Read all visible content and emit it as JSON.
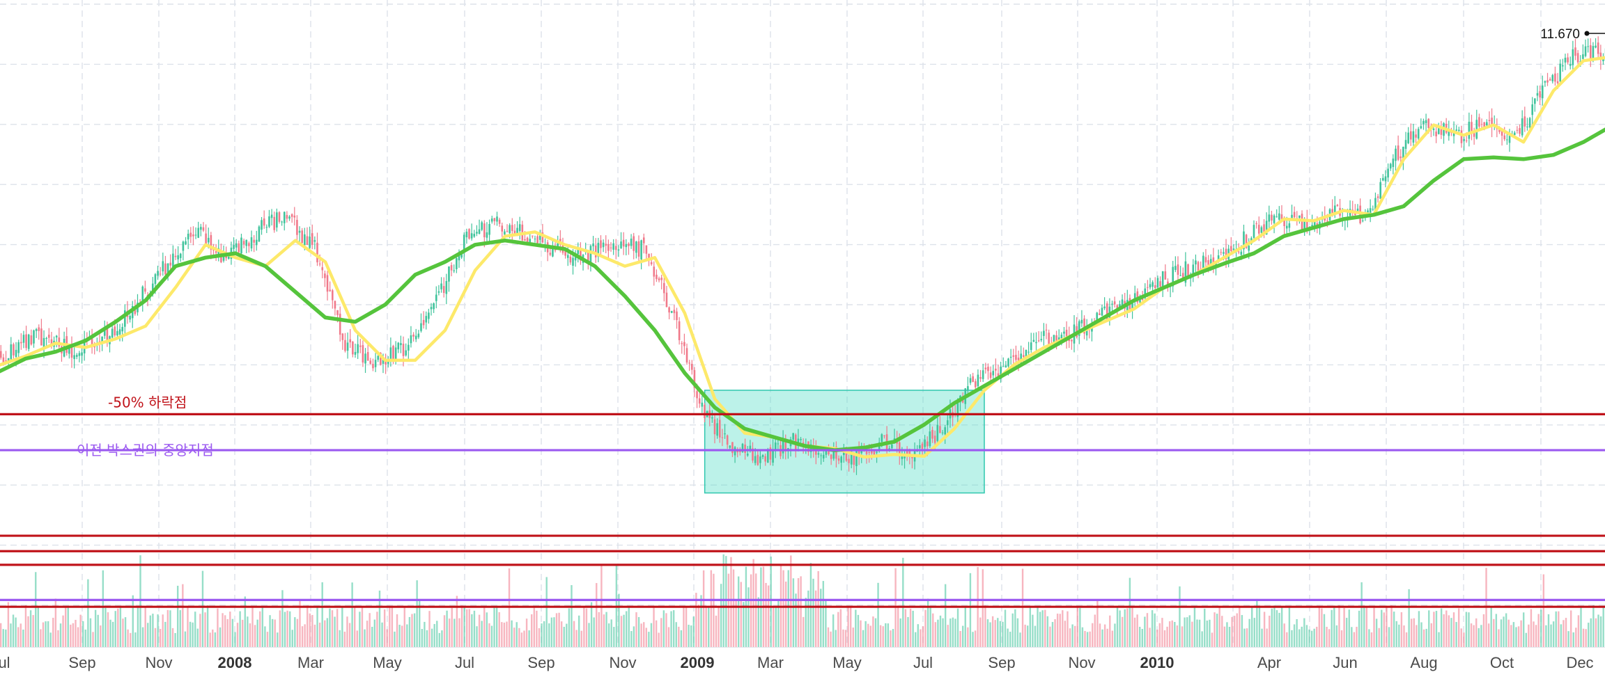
{
  "chart_data": {
    "type": "candlestick",
    "x_axis": {
      "labels": [
        "ul",
        "Sep",
        "Nov",
        "2008",
        "Mar",
        "May",
        "Jul",
        "Sep",
        "Nov",
        "2009",
        "Mar",
        "May",
        "Jul",
        "Sep",
        "Nov",
        "2010",
        "Apr",
        "Jun",
        "Aug",
        "Oct",
        "Dec"
      ],
      "year_labels": [
        "2008",
        "2009",
        "2010"
      ]
    },
    "last_price_label": "11.670",
    "grid": true,
    "series": [
      {
        "name": "",
        "style": "moving-average-short",
        "color": "#fde96a",
        "values": [
          [
            0,
            7.78
          ],
          [
            6,
            7.9
          ],
          [
            12,
            8.05
          ],
          [
            18,
            8.0
          ],
          [
            24,
            8.1
          ],
          [
            30,
            8.25
          ],
          [
            36,
            8.7
          ],
          [
            42,
            9.2
          ],
          [
            48,
            9.05
          ],
          [
            54,
            8.95
          ],
          [
            60,
            9.25
          ],
          [
            66,
            9.0
          ],
          [
            72,
            8.2
          ],
          [
            78,
            7.85
          ],
          [
            84,
            7.85
          ],
          [
            90,
            8.2
          ],
          [
            96,
            8.9
          ],
          [
            102,
            9.3
          ],
          [
            108,
            9.35
          ],
          [
            114,
            9.2
          ],
          [
            120,
            9.1
          ],
          [
            126,
            8.95
          ],
          [
            132,
            9.05
          ],
          [
            138,
            8.4
          ],
          [
            144,
            7.4
          ],
          [
            150,
            7.0
          ],
          [
            156,
            6.95
          ],
          [
            162,
            6.85
          ],
          [
            168,
            6.82
          ],
          [
            174,
            6.72
          ],
          [
            180,
            6.75
          ],
          [
            186,
            6.73
          ],
          [
            192,
            7.05
          ],
          [
            198,
            7.5
          ],
          [
            204,
            7.8
          ],
          [
            210,
            8.0
          ],
          [
            216,
            8.15
          ],
          [
            222,
            8.3
          ],
          [
            228,
            8.45
          ],
          [
            234,
            8.7
          ],
          [
            240,
            8.85
          ],
          [
            246,
            9.05
          ],
          [
            252,
            9.25
          ],
          [
            258,
            9.5
          ],
          [
            264,
            9.48
          ],
          [
            270,
            9.6
          ],
          [
            276,
            9.55
          ],
          [
            282,
            10.2
          ],
          [
            288,
            10.6
          ],
          [
            294,
            10.48
          ],
          [
            300,
            10.6
          ],
          [
            306,
            10.4
          ],
          [
            312,
            11.0
          ],
          [
            318,
            11.35
          ],
          [
            324,
            11.4
          ]
        ]
      },
      {
        "name": "",
        "style": "moving-average-long",
        "color": "#55c43c",
        "values": [
          [
            0,
            7.7
          ],
          [
            6,
            7.87
          ],
          [
            12,
            7.95
          ],
          [
            18,
            8.08
          ],
          [
            24,
            8.3
          ],
          [
            30,
            8.55
          ],
          [
            36,
            8.95
          ],
          [
            42,
            9.05
          ],
          [
            48,
            9.1
          ],
          [
            54,
            8.95
          ],
          [
            60,
            8.65
          ],
          [
            66,
            8.35
          ],
          [
            72,
            8.3
          ],
          [
            78,
            8.5
          ],
          [
            84,
            8.85
          ],
          [
            90,
            9.0
          ],
          [
            96,
            9.2
          ],
          [
            102,
            9.25
          ],
          [
            108,
            9.2
          ],
          [
            114,
            9.15
          ],
          [
            120,
            8.95
          ],
          [
            126,
            8.6
          ],
          [
            132,
            8.2
          ],
          [
            138,
            7.7
          ],
          [
            144,
            7.3
          ],
          [
            150,
            7.05
          ],
          [
            156,
            6.95
          ],
          [
            162,
            6.85
          ],
          [
            168,
            6.8
          ],
          [
            174,
            6.83
          ],
          [
            180,
            6.9
          ],
          [
            186,
            7.1
          ],
          [
            192,
            7.35
          ],
          [
            198,
            7.55
          ],
          [
            204,
            7.75
          ],
          [
            210,
            7.95
          ],
          [
            216,
            8.15
          ],
          [
            222,
            8.35
          ],
          [
            228,
            8.55
          ],
          [
            234,
            8.7
          ],
          [
            240,
            8.85
          ],
          [
            246,
            8.98
          ],
          [
            252,
            9.1
          ],
          [
            258,
            9.3
          ],
          [
            264,
            9.4
          ],
          [
            270,
            9.5
          ],
          [
            276,
            9.55
          ],
          [
            282,
            9.65
          ],
          [
            288,
            9.95
          ],
          [
            294,
            10.2
          ],
          [
            300,
            10.22
          ],
          [
            306,
            10.2
          ],
          [
            312,
            10.25
          ],
          [
            318,
            10.4
          ],
          [
            324,
            10.6
          ]
        ]
      }
    ],
    "candles": {
      "up_color": "#3fc39b",
      "down_color": "#f0798a",
      "anchors": [
        [
          0,
          7.8
        ],
        [
          8,
          8.15
        ],
        [
          16,
          7.95
        ],
        [
          24,
          8.2
        ],
        [
          34,
          8.95
        ],
        [
          40,
          9.4
        ],
        [
          46,
          9.0
        ],
        [
          52,
          9.35
        ],
        [
          58,
          9.55
        ],
        [
          64,
          9.15
        ],
        [
          70,
          8.0
        ],
        [
          76,
          7.85
        ],
        [
          82,
          8.0
        ],
        [
          88,
          8.5
        ],
        [
          94,
          9.25
        ],
        [
          100,
          9.45
        ],
        [
          106,
          9.35
        ],
        [
          112,
          9.15
        ],
        [
          118,
          9.05
        ],
        [
          124,
          9.25
        ],
        [
          130,
          9.15
        ],
        [
          136,
          8.35
        ],
        [
          142,
          7.2
        ],
        [
          148,
          6.85
        ],
        [
          154,
          6.7
        ],
        [
          160,
          6.92
        ],
        [
          166,
          6.75
        ],
        [
          172,
          6.7
        ],
        [
          178,
          6.9
        ],
        [
          184,
          6.75
        ],
        [
          190,
          7.1
        ],
        [
          196,
          7.6
        ],
        [
          202,
          7.8
        ],
        [
          208,
          8.1
        ],
        [
          214,
          8.1
        ],
        [
          220,
          8.35
        ],
        [
          226,
          8.5
        ],
        [
          232,
          8.75
        ],
        [
          238,
          8.9
        ],
        [
          244,
          9.0
        ],
        [
          250,
          9.25
        ],
        [
          256,
          9.5
        ],
        [
          262,
          9.45
        ],
        [
          268,
          9.6
        ],
        [
          274,
          9.5
        ],
        [
          280,
          10.2
        ],
        [
          286,
          10.65
        ],
        [
          292,
          10.45
        ],
        [
          298,
          10.6
        ],
        [
          304,
          10.4
        ],
        [
          310,
          11.0
        ],
        [
          316,
          11.4
        ],
        [
          322,
          11.45
        ],
        [
          324,
          11.67
        ]
      ]
    },
    "horizontal_lines": [
      {
        "y": 7.22,
        "color": "#c0131a",
        "label": "-50% 하락점"
      },
      {
        "y": 6.8,
        "color": "#9b59f0",
        "label": "이전 박스권의 중앙지점"
      },
      {
        "y": 5.8,
        "color": "#c0131a",
        "label": ""
      },
      {
        "y": 5.62,
        "color": "#c0131a",
        "label": ""
      },
      {
        "y": 5.46,
        "color": "#c0131a",
        "label": ""
      },
      {
        "y": 5.05,
        "color": "#9b59f0",
        "label": ""
      },
      {
        "y": 4.97,
        "color": "#c0131a",
        "label": ""
      }
    ],
    "box_zone": {
      "x_start": 142,
      "x_end": 198,
      "y_low": 6.3,
      "y_high": 7.5,
      "color": "#4fdcc5"
    },
    "y_range": [
      4.5,
      12.06
    ],
    "x_range": [
      0,
      324
    ]
  }
}
